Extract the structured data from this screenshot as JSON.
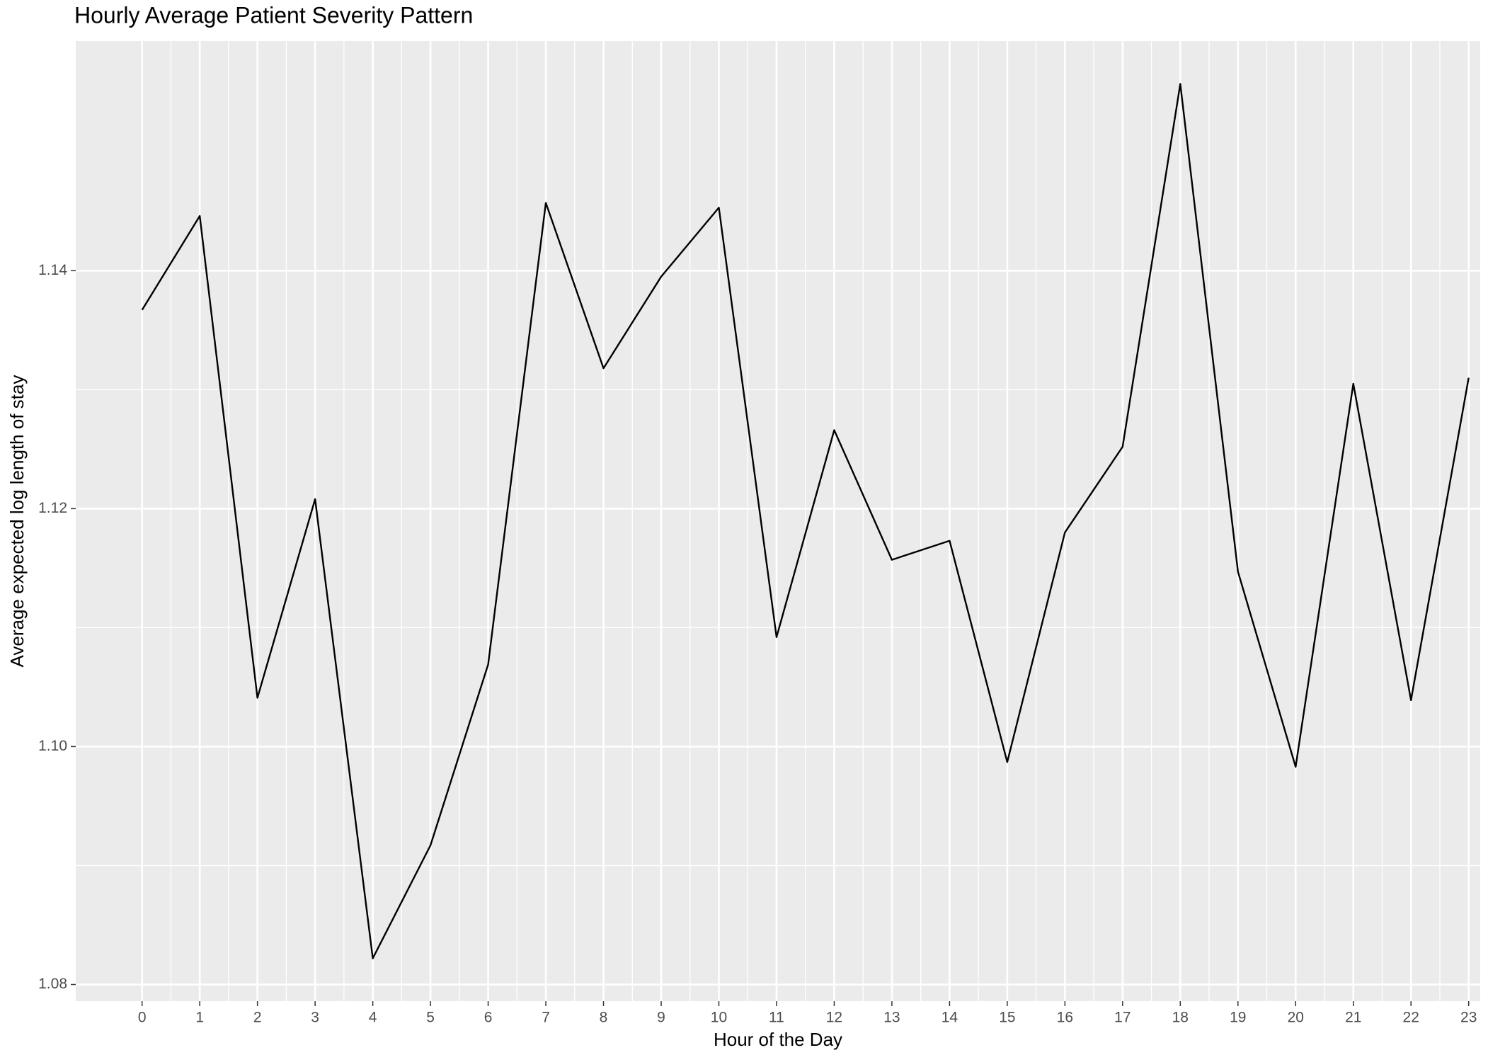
{
  "chart_data": {
    "type": "line",
    "title": "Hourly Average Patient Severity Pattern",
    "x_label": "Hour of the Day",
    "y_label": "Average expected log length of stay",
    "x": [
      0,
      1,
      2,
      3,
      4,
      5,
      6,
      7,
      8,
      9,
      10,
      11,
      12,
      13,
      14,
      15,
      16,
      17,
      18,
      19,
      20,
      21,
      22,
      23
    ],
    "series": [
      {
        "color": "#000000",
        "values": [
          1.1367,
          1.1446,
          1.1041,
          1.1208,
          1.0822,
          1.0917,
          1.1069,
          1.1457,
          1.1318,
          1.1395,
          1.1453,
          1.1092,
          1.1266,
          1.1157,
          1.1173,
          1.0987,
          1.118,
          1.1252,
          1.1557,
          1.1147,
          1.0983,
          1.1305,
          1.1039,
          1.131
        ]
      }
    ],
    "xlim": [
      -1.15,
      23.2
    ],
    "xticks": [
      0,
      1,
      2,
      3,
      4,
      5,
      6,
      7,
      8,
      9,
      10,
      11,
      12,
      13,
      14,
      15,
      16,
      17,
      18,
      19,
      20,
      21,
      22,
      23
    ],
    "ylim": [
      1.0786,
      1.1593
    ],
    "yticks": [
      1.08,
      {
        "value": 1.1,
        "label": "1.10"
      },
      1.12,
      1.14
    ],
    "grid": true,
    "panel_color": "#ebebeb"
  }
}
